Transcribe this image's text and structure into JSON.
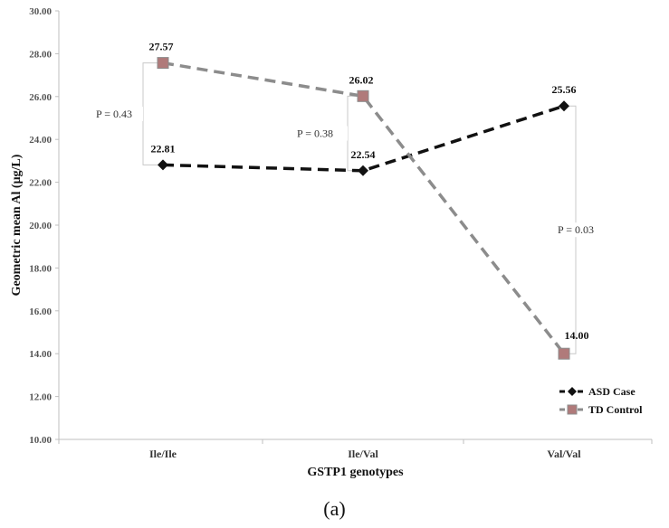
{
  "chart_data": {
    "type": "line",
    "categories": [
      "Ile/Ile",
      "Ile/Val",
      "Val/Val"
    ],
    "series": [
      {
        "name": "ASD Case",
        "values": [
          22.81,
          22.54,
          25.56
        ],
        "labels": [
          "22.81",
          "22.54",
          "25.56"
        ],
        "color": "#111111",
        "marker": "diamond"
      },
      {
        "name": "TD Control",
        "values": [
          27.57,
          26.02,
          14.0
        ],
        "labels": [
          "27.57",
          "26.02",
          "14.00"
        ],
        "color": "#8c8c8c",
        "marker": "square",
        "marker_color": "#b07a7a"
      }
    ],
    "title": "",
    "xlabel": "GSTP1 genotypes",
    "ylabel": "Geometric mean Al (μg/L)",
    "ylim": [
      10,
      30
    ],
    "ytick_step": 2,
    "ytick_labels": [
      "10.00",
      "12.00",
      "14.00",
      "16.00",
      "18.00",
      "20.00",
      "22.00",
      "24.00",
      "26.00",
      "28.00",
      "30.00"
    ],
    "grid": false,
    "legend": "bottom-right",
    "annotations": [
      {
        "text": "P = 0.43",
        "category": "Ile/Ile"
      },
      {
        "text": "P = 0.38",
        "category": "Ile/Val"
      },
      {
        "text": "P = 0.03",
        "category": "Val/Val"
      }
    ]
  },
  "caption": "(a)"
}
